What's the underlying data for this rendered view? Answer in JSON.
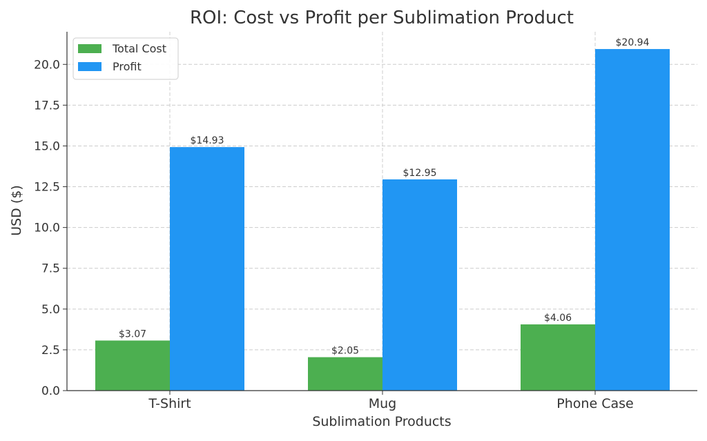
{
  "chart_data": {
    "type": "bar",
    "title": "ROI: Cost vs Profit per Sublimation Product",
    "xlabel": "Sublimation Products",
    "ylabel": "USD ($)",
    "categories": [
      "T-Shirt",
      "Mug",
      "Phone Case"
    ],
    "series": [
      {
        "name": "Total Cost",
        "values": [
          3.07,
          2.05,
          4.06
        ],
        "labels": [
          "$3.07",
          "$2.05",
          "$4.06"
        ],
        "color": "#4caf50"
      },
      {
        "name": "Profit",
        "values": [
          14.93,
          12.95,
          20.94
        ],
        "labels": [
          "$14.93",
          "$12.95",
          "$20.94"
        ],
        "color": "#2196f3"
      }
    ],
    "ylim": [
      0,
      22
    ],
    "yticks": [
      0.0,
      2.5,
      5.0,
      7.5,
      10.0,
      12.5,
      15.0,
      17.5,
      20.0
    ],
    "ytick_labels": [
      "0.0",
      "2.5",
      "5.0",
      "7.5",
      "10.0",
      "12.5",
      "15.0",
      "17.5",
      "20.0"
    ],
    "grid": true,
    "legend_position": "top-left"
  }
}
